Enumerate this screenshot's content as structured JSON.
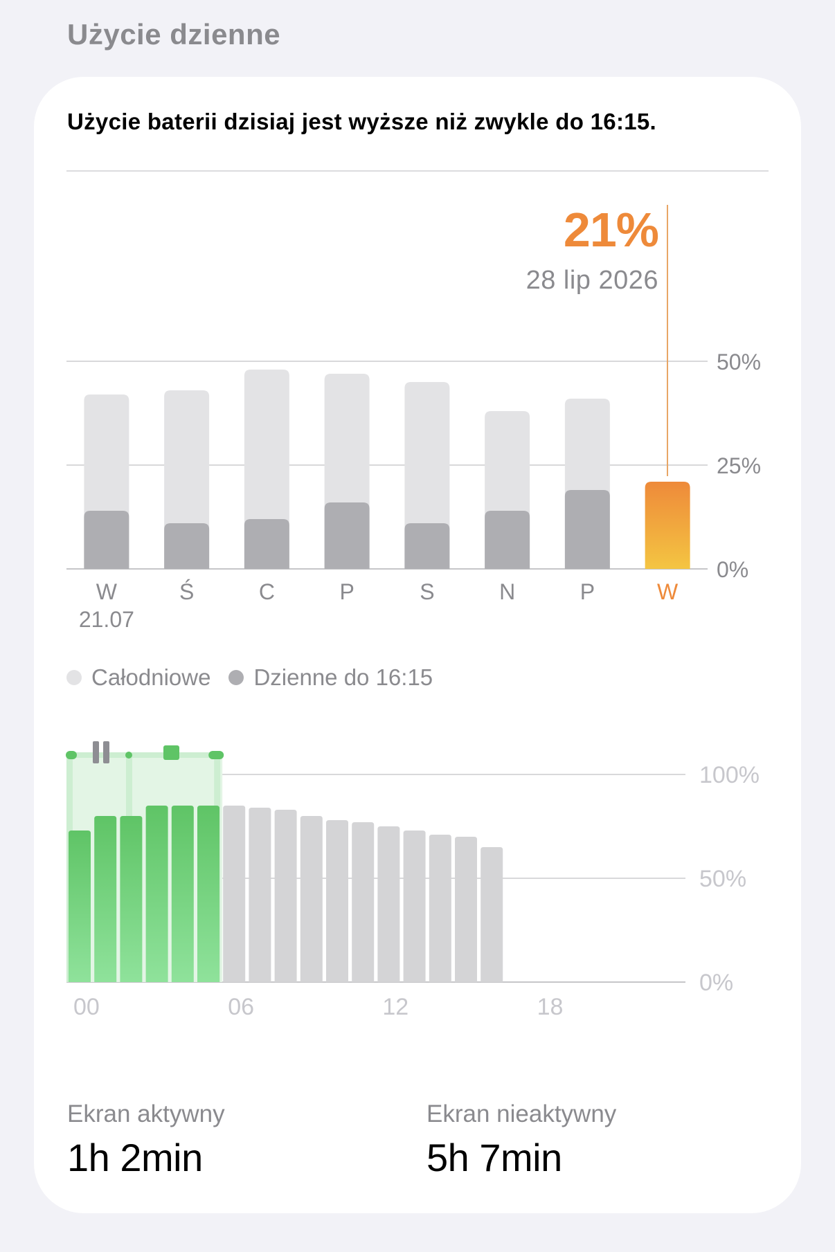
{
  "section_title": "Użycie dzienne",
  "headline": "Użycie baterii dzisiaj jest wyższe niż zwykle do 16:15.",
  "selection": {
    "value": "21%",
    "date": "28 lip 2026"
  },
  "colors": {
    "accent": "#ee8a3a",
    "accent_light": "#f4c542",
    "full_day": "#e3e3e5",
    "partial_day": "#aeaeb2",
    "green": "#5fc466",
    "green_light": "#8fe29b",
    "gray_bar": "#d4d4d6"
  },
  "legend": [
    {
      "label": "Całodniowe",
      "color": "#e3e3e5"
    },
    {
      "label": "Dzienne do 16:15",
      "color": "#aeaeb2"
    }
  ],
  "chart_data": [
    {
      "type": "bar",
      "categories": [
        "W",
        "Ś",
        "C",
        "P",
        "S",
        "N",
        "P",
        "W"
      ],
      "category_sublabels": [
        "21.07",
        "",
        "",
        "",
        "",
        "",
        "",
        ""
      ],
      "series": [
        {
          "name": "Całodniowe",
          "values": [
            42,
            43,
            48,
            47,
            45,
            38,
            41,
            21
          ]
        },
        {
          "name": "Dzienne do 16:15",
          "values": [
            14,
            11,
            12,
            16,
            11,
            14,
            19,
            21
          ]
        }
      ],
      "highlight_index": 7,
      "ylim": [
        0,
        50
      ],
      "y_ticks": [
        "50%",
        "25%",
        "0%"
      ],
      "y_tick_values": [
        50,
        25,
        0
      ],
      "grid": true
    },
    {
      "type": "bar",
      "x": [
        0,
        1,
        2,
        3,
        4,
        5,
        6,
        7,
        8,
        9,
        10,
        11,
        12,
        13,
        14,
        15,
        16
      ],
      "values": [
        73,
        80,
        80,
        85,
        85,
        85,
        85,
        84,
        83,
        80,
        78,
        77,
        75,
        73,
        71,
        70,
        65
      ],
      "charging_hours": [
        0,
        1,
        2,
        3,
        4,
        5
      ],
      "x_ticks": [
        "00",
        "06",
        "12",
        "18"
      ],
      "x_tick_values": [
        0,
        6,
        12,
        18
      ],
      "ylim": [
        0,
        100
      ],
      "y_ticks": [
        "100%",
        "50%",
        "0%"
      ],
      "y_tick_values": [
        100,
        50,
        0
      ],
      "grid": true
    }
  ],
  "stats": [
    {
      "label": "Ekran aktywny",
      "value": "1h 2min"
    },
    {
      "label": "Ekran nieaktywny",
      "value": "5h 7min"
    }
  ]
}
